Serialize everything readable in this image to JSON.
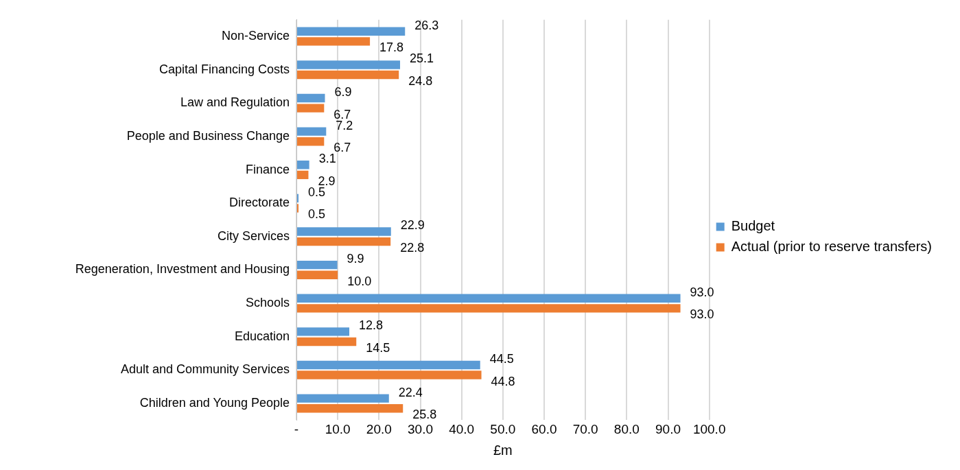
{
  "chart_data": {
    "type": "bar",
    "orientation": "horizontal",
    "xlabel": "£m",
    "categories": [
      "Non-Service",
      "Capital Financing Costs",
      "Law and Regulation",
      "People and Business Change",
      "Finance",
      "Directorate",
      "City Services",
      "Regeneration, Investment and Housing",
      "Schools",
      "Education",
      "Adult and Community Services",
      "Children and Young People"
    ],
    "series": [
      {
        "name": "Budget",
        "color": "#5b9bd5",
        "values": [
          26.3,
          25.1,
          6.9,
          7.2,
          3.1,
          0.5,
          22.9,
          9.9,
          93.0,
          12.8,
          44.5,
          22.4
        ],
        "value_labels": [
          "26.3",
          "25.1",
          "6.9",
          "7.2",
          "3.1",
          "0.5",
          "22.9",
          "9.9",
          "93.0",
          "12.8",
          "44.5",
          "22.4"
        ]
      },
      {
        "name": "Actual (prior to reserve transfers)",
        "color": "#ed7d31",
        "values": [
          17.8,
          24.8,
          6.7,
          6.7,
          2.9,
          0.5,
          22.8,
          10.0,
          93.0,
          14.5,
          44.8,
          25.8
        ],
        "value_labels": [
          "17.8",
          "24.8",
          "6.7",
          "6.7",
          "2.9",
          "0.5",
          "22.8",
          "10.0",
          "93.0",
          "14.5",
          "44.8",
          "25.8"
        ]
      }
    ],
    "xlim": [
      0,
      100
    ],
    "xticks": [
      {
        "value": 0,
        "label": "-"
      },
      {
        "value": 10,
        "label": "10.0"
      },
      {
        "value": 20,
        "label": "20.0"
      },
      {
        "value": 30,
        "label": "30.0"
      },
      {
        "value": 40,
        "label": "40.0"
      },
      {
        "value": 50,
        "label": "50.0"
      },
      {
        "value": 60,
        "label": "60.0"
      },
      {
        "value": 70,
        "label": "70.0"
      },
      {
        "value": 80,
        "label": "80.0"
      },
      {
        "value": 90,
        "label": "90.0"
      },
      {
        "value": 100,
        "label": "100.0"
      }
    ],
    "grid": "x",
    "legend": "right"
  }
}
